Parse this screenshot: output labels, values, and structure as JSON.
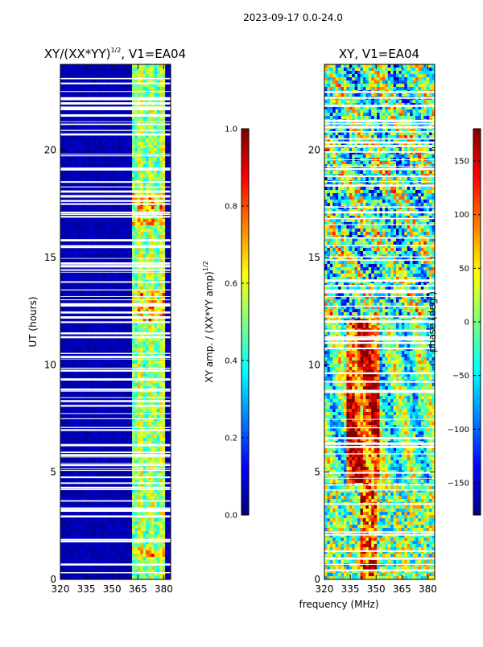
{
  "colors": {
    "jet": [
      "#00007f",
      "#0000ff",
      "#007fff",
      "#00ffff",
      "#7fff7f",
      "#ffff00",
      "#ff7f00",
      "#ff0000",
      "#7f0000"
    ],
    "background": "#ffffff",
    "axis": "#000000"
  },
  "chart_data": {
    "suptitle": "2023-09-17 0.0-24.0",
    "shared_xlabel": "frequency (MHz)",
    "panels": [
      {
        "type": "heatmap",
        "title": "XY/(XX*YY)",
        "title_sup": "1/2",
        "title_suffix": ", V1=EA04",
        "xlabel": "",
        "ylabel": "UT (hours)",
        "xlim": [
          320,
          384
        ],
        "ylim": [
          0,
          24
        ],
        "xticks": [
          320,
          335,
          350,
          365,
          380
        ],
        "yticks": [
          0,
          5,
          10,
          15,
          20
        ],
        "quantity": "normalized XY amplitude",
        "description": "Mostly low values (~0.05) across band; elevated values 0.3-0.8 in channels 361-380 MHz; many flagged (white) time rows.",
        "colorbar": {
          "label": "XY amp. / (XX*YY amp)",
          "label_sup": "1/2",
          "range": [
            0.0,
            1.0
          ],
          "ticks": [
            0.0,
            0.2,
            0.4,
            0.6,
            0.8,
            1.0
          ],
          "tick_labels": [
            "0.0",
            "0.2",
            "0.4",
            "0.6",
            "0.8",
            "1.0"
          ]
        }
      },
      {
        "type": "heatmap",
        "title": "XY, V1=EA04",
        "xlabel": "",
        "ylabel": "",
        "xlim": [
          320,
          384
        ],
        "ylim": [
          0,
          24
        ],
        "xticks": [
          320,
          335,
          350,
          365,
          380
        ],
        "yticks": [
          0,
          5,
          10,
          15,
          20
        ],
        "quantity": "XY phase",
        "description": "Phase varies strongly across time and frequency; coherent red/orange bands near 335-350 MHz between 2 and 12 UT.",
        "colorbar": {
          "label": "phase (deg.)",
          "range": [
            -180,
            180
          ],
          "ticks": [
            -150,
            -100,
            -50,
            0,
            50,
            100,
            150
          ],
          "tick_labels": [
            "−150",
            "−100",
            "−50",
            "0",
            "50",
            "100",
            "150"
          ]
        }
      }
    ]
  }
}
